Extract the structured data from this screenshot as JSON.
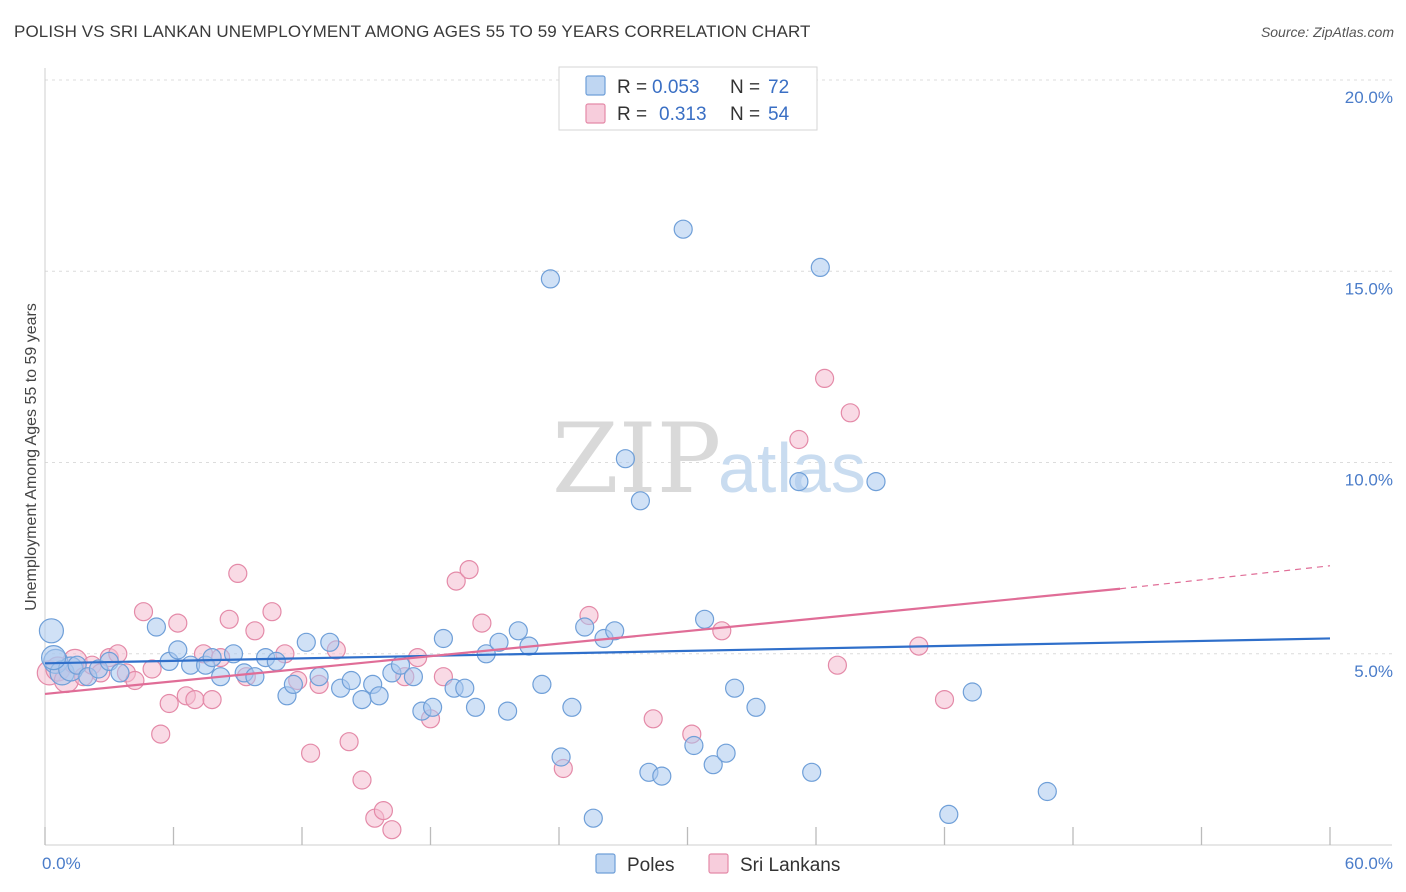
{
  "title": "POLISH VS SRI LANKAN UNEMPLOYMENT AMONG AGES 55 TO 59 YEARS CORRELATION CHART",
  "source": "Source: ZipAtlas.com",
  "watermark": {
    "zip": "ZIP",
    "atlas": "atlas"
  },
  "colors": {
    "poles_fill": "#a9c8ee",
    "poles_stroke": "#6f9fd8",
    "poles_line": "#2f6fca",
    "sri_fill": "#f4bcd0",
    "sri_stroke": "#e48aa8",
    "sri_line": "#e06d97",
    "grid": "#dcdcdc",
    "axis_text": "#4a7cc9"
  },
  "legend": {
    "rows": [
      {
        "r_label": "R =",
        "r_value": "0.053",
        "n_label": "N =",
        "n_value": "72"
      },
      {
        "r_label": "R =",
        "r_value": "0.313",
        "n_label": "N =",
        "n_value": "54"
      }
    ]
  },
  "chart_data": {
    "type": "scatter",
    "title": "POLISH VS SRI LANKAN UNEMPLOYMENT AMONG AGES 55 TO 59 YEARS CORRELATION CHART",
    "xlabel": "",
    "ylabel": "Unemployment Among Ages 55 to 59 years",
    "xlim": [
      0,
      60
    ],
    "ylim": [
      0,
      20
    ],
    "x_tick_labels": [
      "0.0%",
      "60.0%"
    ],
    "y_ticks": [
      5,
      10,
      15,
      20
    ],
    "y_tick_labels": [
      "5.0%",
      "10.0%",
      "15.0%",
      "20.0%"
    ],
    "grid": true,
    "legend_position": "top-center",
    "series": [
      {
        "name": "Poles",
        "r": 0.053,
        "n": 72,
        "trend": {
          "x0": 0,
          "y0": 4.75,
          "x1": 60,
          "y1": 5.4
        },
        "points": [
          [
            0.3,
            5.6
          ],
          [
            0.5,
            4.8
          ],
          [
            0.8,
            4.5
          ],
          [
            1.2,
            4.6
          ],
          [
            1.5,
            4.7
          ],
          [
            2.0,
            4.4
          ],
          [
            2.5,
            4.6
          ],
          [
            3.0,
            4.8
          ],
          [
            3.5,
            4.5
          ],
          [
            5.2,
            5.7
          ],
          [
            5.8,
            4.8
          ],
          [
            6.2,
            5.1
          ],
          [
            6.8,
            4.7
          ],
          [
            7.5,
            4.7
          ],
          [
            7.8,
            4.9
          ],
          [
            8.2,
            4.4
          ],
          [
            8.8,
            5.0
          ],
          [
            9.3,
            4.5
          ],
          [
            9.8,
            4.4
          ],
          [
            10.3,
            4.9
          ],
          [
            10.8,
            4.8
          ],
          [
            11.3,
            3.9
          ],
          [
            11.6,
            4.2
          ],
          [
            12.2,
            5.3
          ],
          [
            12.8,
            4.4
          ],
          [
            13.3,
            5.3
          ],
          [
            13.8,
            4.1
          ],
          [
            14.3,
            4.3
          ],
          [
            14.8,
            3.8
          ],
          [
            15.3,
            4.2
          ],
          [
            15.6,
            3.9
          ],
          [
            16.2,
            4.5
          ],
          [
            16.6,
            4.7
          ],
          [
            17.2,
            4.4
          ],
          [
            17.6,
            3.5
          ],
          [
            18.1,
            3.6
          ],
          [
            18.6,
            5.4
          ],
          [
            19.1,
            4.1
          ],
          [
            19.6,
            4.1
          ],
          [
            20.1,
            3.6
          ],
          [
            20.6,
            5.0
          ],
          [
            21.2,
            5.3
          ],
          [
            21.6,
            3.5
          ],
          [
            22.1,
            5.6
          ],
          [
            22.6,
            5.2
          ],
          [
            23.2,
            4.2
          ],
          [
            23.6,
            14.8
          ],
          [
            24.1,
            2.3
          ],
          [
            24.6,
            3.6
          ],
          [
            25.2,
            5.7
          ],
          [
            25.6,
            0.7
          ],
          [
            26.1,
            5.4
          ],
          [
            26.6,
            5.6
          ],
          [
            27.1,
            10.1
          ],
          [
            27.8,
            9.0
          ],
          [
            28.2,
            1.9
          ],
          [
            28.8,
            1.8
          ],
          [
            29.8,
            16.1
          ],
          [
            30.3,
            2.6
          ],
          [
            30.8,
            5.9
          ],
          [
            31.2,
            2.1
          ],
          [
            31.8,
            2.4
          ],
          [
            32.2,
            4.1
          ],
          [
            33.2,
            3.6
          ],
          [
            35.2,
            9.5
          ],
          [
            35.8,
            1.9
          ],
          [
            36.2,
            15.1
          ],
          [
            38.8,
            9.5
          ],
          [
            42.2,
            0.8
          ],
          [
            43.3,
            4.0
          ],
          [
            46.8,
            1.4
          ],
          [
            0.4,
            4.9
          ]
        ]
      },
      {
        "name": "Sri Lankans",
        "r": 0.313,
        "n": 54,
        "trend": {
          "x0": 0,
          "y0": 3.95,
          "x1": 50.2,
          "y1": 6.7
        },
        "trend_dashed": {
          "x0": 50.2,
          "y0": 6.7,
          "x1": 60,
          "y1": 7.3
        },
        "points": [
          [
            0.2,
            4.5
          ],
          [
            0.6,
            4.6
          ],
          [
            1.0,
            4.3
          ],
          [
            1.4,
            4.8
          ],
          [
            1.8,
            4.4
          ],
          [
            2.2,
            4.7
          ],
          [
            2.6,
            4.5
          ],
          [
            3.0,
            4.9
          ],
          [
            3.4,
            5.0
          ],
          [
            3.8,
            4.5
          ],
          [
            4.2,
            4.3
          ],
          [
            4.6,
            6.1
          ],
          [
            5.0,
            4.6
          ],
          [
            5.4,
            2.9
          ],
          [
            5.8,
            3.7
          ],
          [
            6.2,
            5.8
          ],
          [
            6.6,
            3.9
          ],
          [
            7.0,
            3.8
          ],
          [
            7.4,
            5.0
          ],
          [
            7.8,
            3.8
          ],
          [
            8.2,
            4.9
          ],
          [
            8.6,
            5.9
          ],
          [
            9.0,
            7.1
          ],
          [
            9.4,
            4.4
          ],
          [
            9.8,
            5.6
          ],
          [
            10.6,
            6.1
          ],
          [
            11.2,
            5.0
          ],
          [
            11.8,
            4.3
          ],
          [
            12.4,
            2.4
          ],
          [
            12.8,
            4.2
          ],
          [
            13.6,
            5.1
          ],
          [
            14.2,
            2.7
          ],
          [
            14.8,
            1.7
          ],
          [
            15.4,
            0.7
          ],
          [
            15.8,
            0.9
          ],
          [
            16.2,
            0.4
          ],
          [
            16.8,
            4.4
          ],
          [
            17.4,
            4.9
          ],
          [
            18.0,
            3.3
          ],
          [
            18.6,
            4.4
          ],
          [
            19.2,
            6.9
          ],
          [
            19.8,
            7.2
          ],
          [
            20.4,
            5.8
          ],
          [
            24.2,
            2.0
          ],
          [
            25.4,
            6.0
          ],
          [
            28.4,
            3.3
          ],
          [
            30.2,
            2.9
          ],
          [
            31.6,
            5.6
          ],
          [
            35.2,
            10.6
          ],
          [
            36.4,
            12.2
          ],
          [
            37.0,
            4.7
          ],
          [
            37.6,
            11.3
          ],
          [
            40.8,
            5.2
          ],
          [
            42.0,
            3.8
          ]
        ]
      }
    ]
  },
  "bottom_legend": [
    {
      "label": "Poles"
    },
    {
      "label": "Sri Lankans"
    }
  ]
}
